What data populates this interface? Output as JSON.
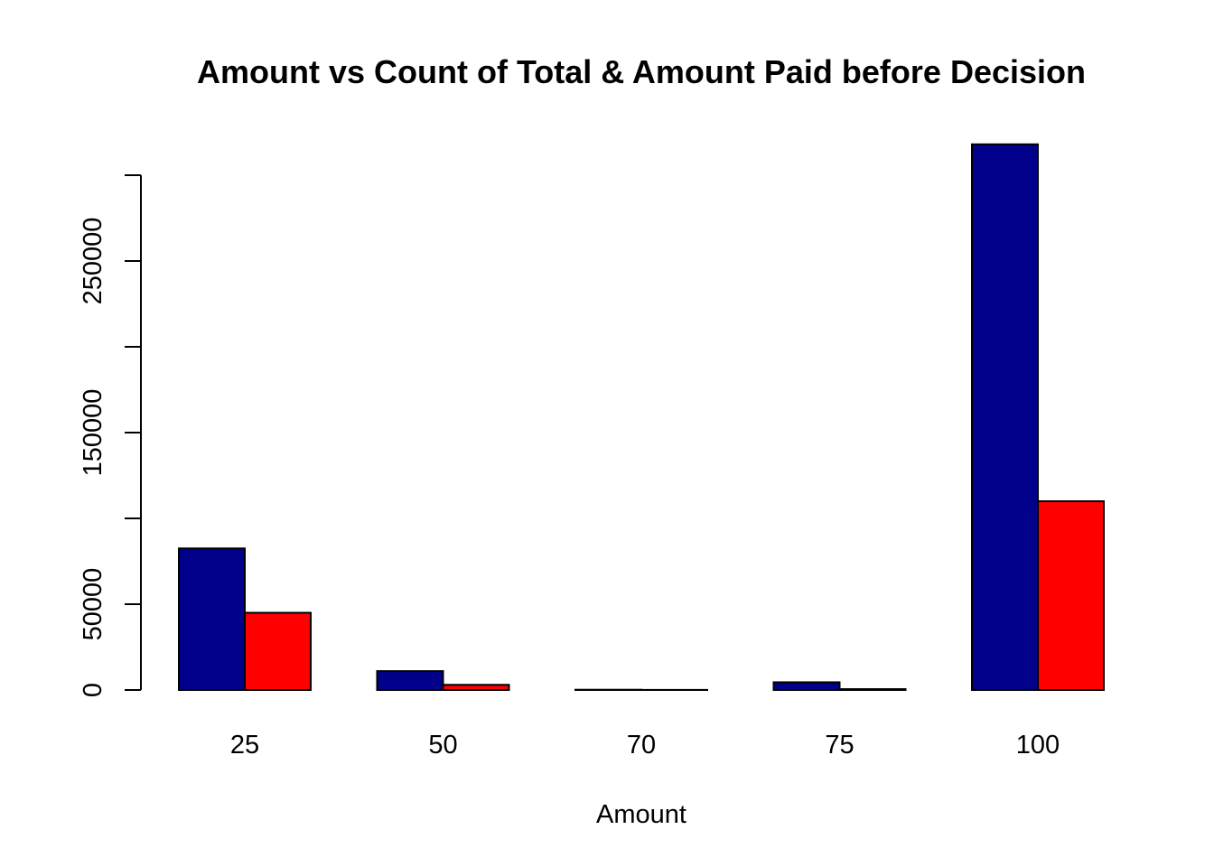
{
  "chart_data": {
    "type": "bar",
    "title": "Amount vs Count of Total & Amount Paid before Decision",
    "xlabel": "Amount",
    "ylabel": "",
    "categories": [
      "25",
      "50",
      "70",
      "75",
      "100"
    ],
    "series": [
      {
        "values": [
          82500,
          11000,
          150,
          4500,
          318000
        ],
        "color": "#00008B"
      },
      {
        "values": [
          45000,
          3000,
          50,
          500,
          110000
        ],
        "color": "#FF0000"
      }
    ],
    "ylim": [
      0,
      300000
    ],
    "yticks": [
      0,
      50000,
      100000,
      150000,
      200000,
      250000,
      300000
    ],
    "yticklabels": [
      "0",
      "50000",
      "",
      "150000",
      "",
      "250000",
      ""
    ],
    "grid": false,
    "legend": "none"
  }
}
